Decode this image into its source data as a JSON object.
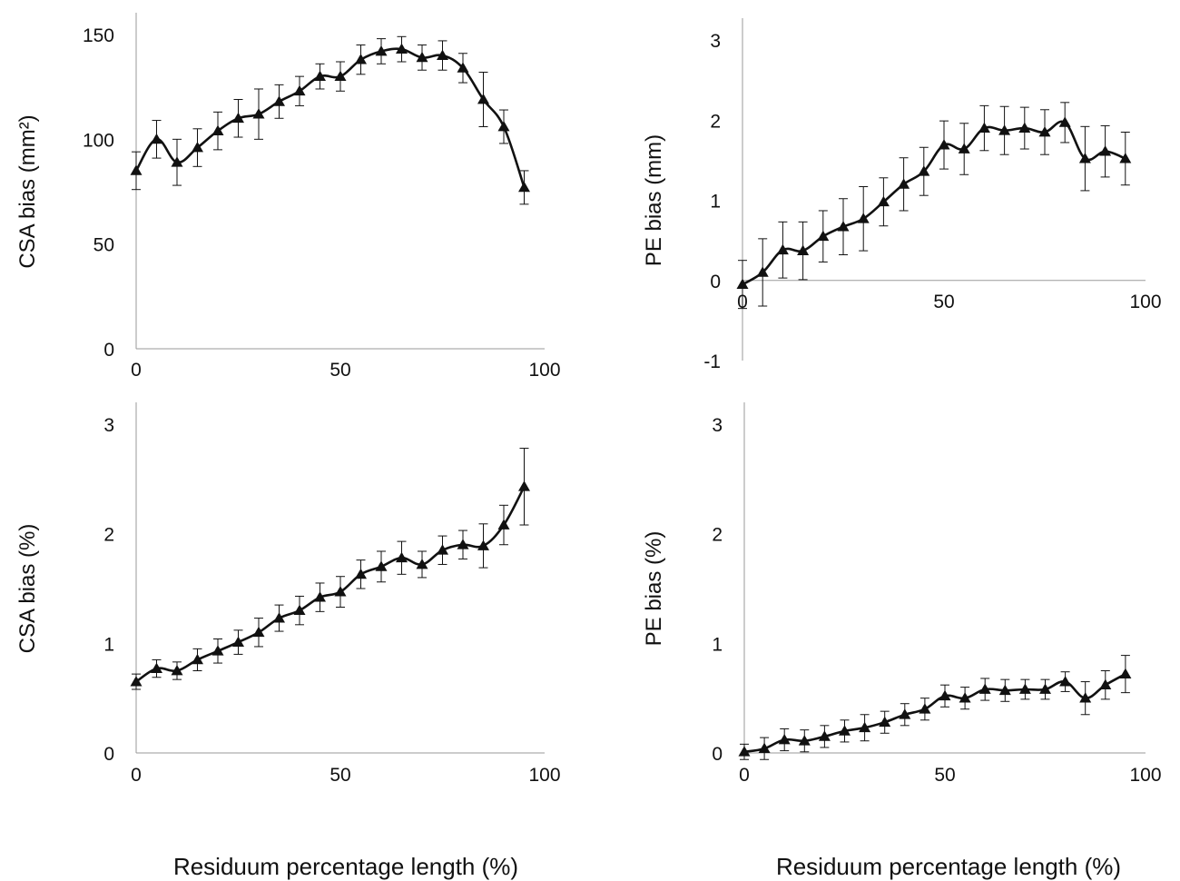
{
  "chart_data": [
    {
      "type": "line",
      "id": "top-left",
      "ylabel": "CSA bias (mm²)",
      "xlabel": "",
      "xlim": [
        0,
        100
      ],
      "ylim": [
        0,
        150
      ],
      "xticks": [
        0,
        50,
        100
      ],
      "yticks": [
        0,
        50,
        100,
        150
      ],
      "grid": false,
      "marker": "triangle",
      "series": [
        {
          "x": [
            0,
            5,
            10,
            15,
            20,
            25,
            30,
            35,
            40,
            45,
            50,
            55,
            60,
            65,
            70,
            75,
            80,
            85,
            90,
            95
          ],
          "y": [
            85,
            100,
            89,
            96,
            104,
            110,
            112,
            118,
            123,
            130,
            130,
            138,
            142,
            143,
            139,
            140,
            134,
            119,
            106,
            77
          ],
          "error": [
            9,
            9,
            11,
            9,
            9,
            9,
            12,
            8,
            7,
            6,
            7,
            7,
            6,
            6,
            6,
            7,
            7,
            13,
            8,
            8
          ]
        }
      ]
    },
    {
      "type": "line",
      "id": "top-right",
      "ylabel": "PE  bias (mm)",
      "xlabel": "",
      "xlim": [
        0,
        100
      ],
      "ylim": [
        -1,
        3
      ],
      "xticks": [
        0,
        50,
        100
      ],
      "yticks": [
        -1,
        0,
        1,
        2,
        3
      ],
      "grid": false,
      "marker": "triangle",
      "series": [
        {
          "x": [
            0,
            5,
            10,
            15,
            20,
            25,
            30,
            35,
            40,
            45,
            50,
            55,
            60,
            65,
            70,
            75,
            80,
            85,
            90,
            95
          ],
          "y": [
            -0.05,
            0.1,
            0.38,
            0.37,
            0.55,
            0.67,
            0.77,
            0.98,
            1.2,
            1.36,
            1.69,
            1.64,
            1.9,
            1.87,
            1.9,
            1.85,
            1.97,
            1.52,
            1.61,
            1.52
          ],
          "error": [
            0.3,
            0.42,
            0.35,
            0.36,
            0.32,
            0.35,
            0.4,
            0.3,
            0.33,
            0.3,
            0.3,
            0.32,
            0.28,
            0.3,
            0.26,
            0.28,
            0.25,
            0.4,
            0.32,
            0.33
          ]
        }
      ]
    },
    {
      "type": "line",
      "id": "bottom-left",
      "ylabel": "CSA bias (%)",
      "xlabel": "",
      "xlim": [
        0,
        100
      ],
      "ylim": [
        0,
        3
      ],
      "xticks": [
        0,
        50,
        100
      ],
      "yticks": [
        0,
        1,
        2,
        3
      ],
      "grid": false,
      "marker": "triangle",
      "series": [
        {
          "x": [
            0,
            5,
            10,
            15,
            20,
            25,
            30,
            35,
            40,
            45,
            50,
            55,
            60,
            65,
            70,
            75,
            80,
            85,
            90,
            95
          ],
          "y": [
            0.65,
            0.77,
            0.75,
            0.85,
            0.93,
            1.01,
            1.1,
            1.23,
            1.3,
            1.42,
            1.47,
            1.63,
            1.7,
            1.78,
            1.72,
            1.85,
            1.9,
            1.89,
            2.08,
            2.43
          ],
          "error": [
            0.07,
            0.08,
            0.08,
            0.1,
            0.11,
            0.11,
            0.13,
            0.12,
            0.13,
            0.13,
            0.14,
            0.13,
            0.14,
            0.15,
            0.12,
            0.13,
            0.13,
            0.2,
            0.18,
            0.35
          ]
        }
      ]
    },
    {
      "type": "line",
      "id": "bottom-right",
      "ylabel": "PE  bias (%)",
      "xlabel": "",
      "xlim": [
        0,
        100
      ],
      "ylim": [
        0,
        3
      ],
      "xticks": [
        0,
        50,
        100
      ],
      "yticks": [
        0,
        1,
        2,
        3
      ],
      "grid": false,
      "marker": "triangle",
      "series": [
        {
          "x": [
            0,
            5,
            10,
            15,
            20,
            25,
            30,
            35,
            40,
            45,
            50,
            55,
            60,
            65,
            70,
            75,
            80,
            85,
            90,
            95
          ],
          "y": [
            0.01,
            0.04,
            0.12,
            0.11,
            0.15,
            0.2,
            0.23,
            0.28,
            0.35,
            0.4,
            0.52,
            0.5,
            0.58,
            0.57,
            0.58,
            0.58,
            0.65,
            0.5,
            0.62,
            0.72
          ],
          "error": [
            0.07,
            0.1,
            0.1,
            0.1,
            0.1,
            0.1,
            0.12,
            0.1,
            0.1,
            0.1,
            0.1,
            0.1,
            0.1,
            0.1,
            0.09,
            0.09,
            0.09,
            0.15,
            0.13,
            0.17
          ]
        }
      ]
    }
  ],
  "footer": {
    "left_xlabel": "Residuum percentage length (%)",
    "right_xlabel": "Residuum percentage length (%)"
  },
  "colors": {
    "line": "#111111",
    "axis": "#9a9a9a",
    "text": "#111111"
  }
}
